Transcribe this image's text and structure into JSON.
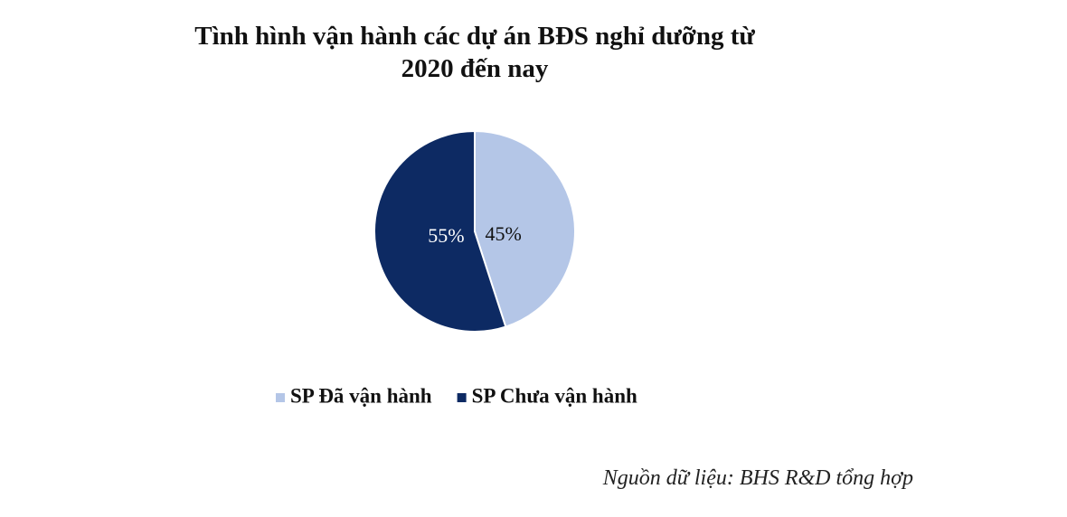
{
  "chart_data": {
    "type": "pie",
    "title": "Tình hình vận hành các dự án BĐS nghỉ dưỡng từ 2020 đến nay",
    "categories": [
      "SP Đã vận hành",
      "SP Chưa vận hành"
    ],
    "values": [
      45,
      55
    ],
    "value_labels": [
      "45%",
      "55%"
    ],
    "colors": [
      "#b4c6e7",
      "#0d2a63"
    ],
    "legend": "bottom",
    "source": "Nguồn dữ liệu: BHS R&D tổng hợp"
  }
}
